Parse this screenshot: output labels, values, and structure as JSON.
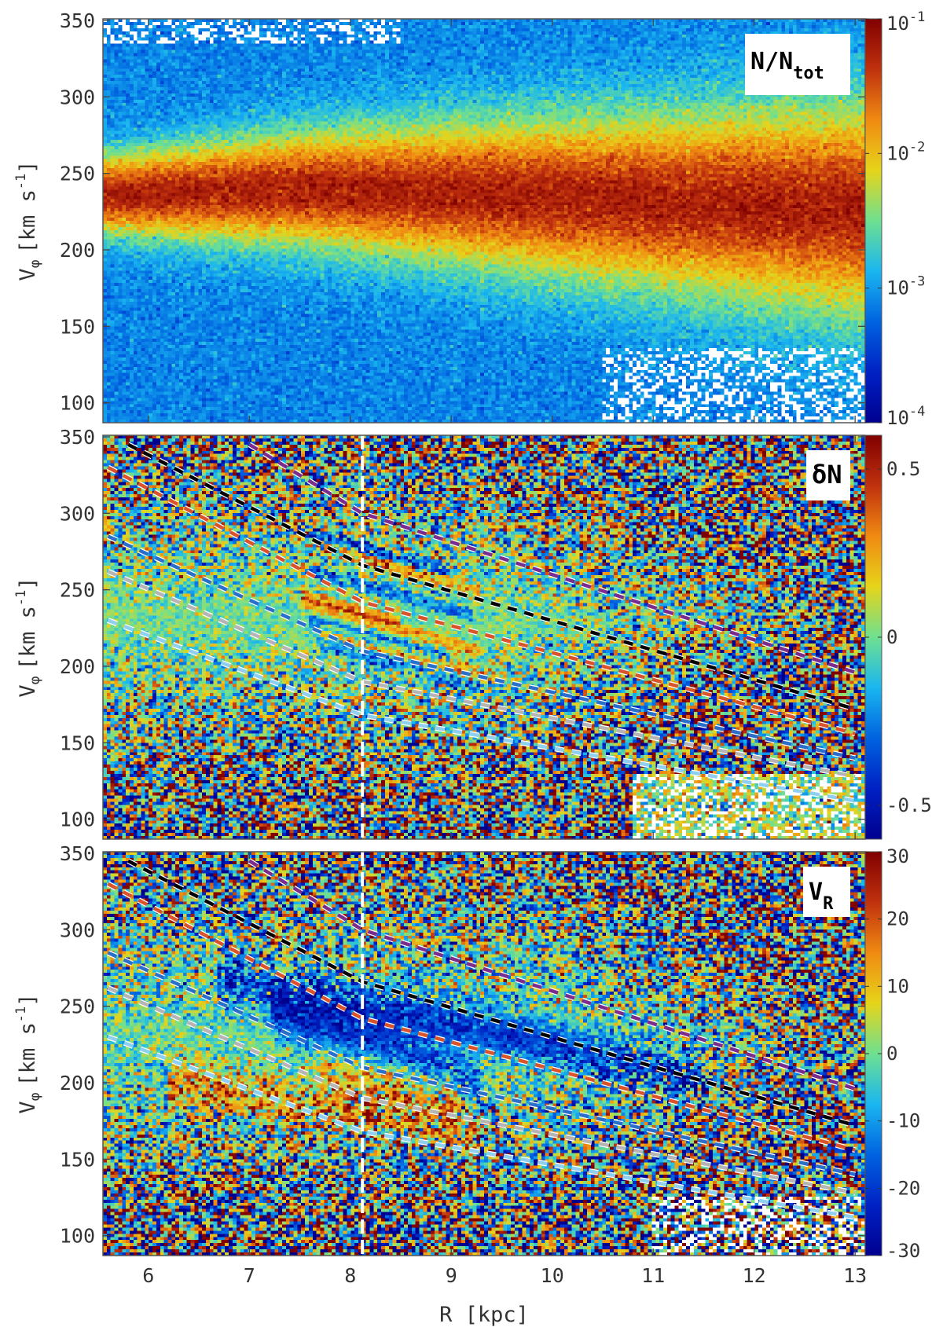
{
  "chart_data": {
    "type": "heatmap",
    "panels": [
      {
        "label": "N/N",
        "label_sub": "tot",
        "colorbar": {
          "scale": "log",
          "range": [
            0.0001,
            0.1
          ],
          "ticks": [
            {
              "base": "10",
              "exp": "-1"
            },
            {
              "base": "10",
              "exp": "-2"
            },
            {
              "base": "10",
              "exp": "-3"
            },
            {
              "base": "10",
              "exp": "-4"
            }
          ]
        },
        "dashed_lines": false
      },
      {
        "label": "δN",
        "colorbar": {
          "scale": "linear",
          "range": [
            -0.6,
            0.6
          ],
          "ticks": [
            "0.5",
            "0",
            "-0.5"
          ],
          "tick_values": [
            0.5,
            0,
            -0.5
          ]
        },
        "dashed_lines": true
      },
      {
        "label": "V",
        "label_sub": "R",
        "colorbar": {
          "scale": "linear",
          "range": [
            -30,
            30
          ],
          "ticks": [
            "30",
            "20",
            "10",
            "0",
            "-10",
            "-20",
            "-30"
          ],
          "tick_values": [
            30,
            20,
            10,
            0,
            -10,
            -20,
            -30
          ]
        },
        "dashed_lines": true
      }
    ],
    "x": {
      "label": "R [kpc]",
      "range": [
        5.55,
        13.1
      ],
      "ticks": [
        "6",
        "7",
        "8",
        "9",
        "10",
        "11",
        "12",
        "13"
      ],
      "tick_values": [
        6,
        7,
        8,
        9,
        10,
        11,
        12,
        13
      ]
    },
    "y": {
      "label": "V",
      "label_sub": "φ",
      "label_units": "[km s",
      "label_exp": "-1",
      "label_close": "]",
      "range": [
        87,
        351
      ],
      "ticks": [
        "350",
        "300",
        "250",
        "200",
        "150",
        "100"
      ],
      "tick_values": [
        350,
        300,
        250,
        200,
        150,
        100
      ]
    },
    "vertical_line": {
      "R": 8.12,
      "color": "#ffffff",
      "style": "dashed"
    },
    "resonance_lines": [
      {
        "color": "#7b2d8e",
        "points": [
          [
            7.0,
            345
          ],
          [
            8.12,
            300
          ],
          [
            13.0,
            196
          ]
        ]
      },
      {
        "color": "#000000",
        "points": [
          [
            5.8,
            345
          ],
          [
            8.12,
            266
          ],
          [
            13.0,
            172
          ]
        ]
      },
      {
        "color": "#d9542a",
        "points": [
          [
            5.6,
            330
          ],
          [
            8.12,
            242
          ],
          [
            13.0,
            156
          ]
        ]
      },
      {
        "color": "#2a6fc9",
        "points": [
          [
            5.6,
            285
          ],
          [
            8.12,
            210
          ],
          [
            13.0,
            140
          ]
        ]
      },
      {
        "color": "#b5b5b5",
        "points": [
          [
            5.6,
            262
          ],
          [
            8.12,
            190
          ],
          [
            13.0,
            128
          ]
        ]
      },
      {
        "color": "#8fd0f0",
        "points": [
          [
            5.6,
            230
          ],
          [
            8.12,
            168
          ],
          [
            13.0,
            112
          ]
        ]
      }
    ],
    "ridges": {
      "density": [
        {
          "points": [
            [
              5.6,
              236
            ],
            [
              7.5,
              240
            ],
            [
              9,
              237
            ],
            [
              11,
              232
            ],
            [
              13,
              226
            ]
          ],
          "width": 26
        }
      ],
      "delta_n_positive": [
        {
          "R": 8.5,
          "Vphi": 263,
          "len": 0.8
        },
        {
          "R": 8.4,
          "Vphi": 226,
          "len": 0.9
        },
        {
          "R": 8.6,
          "Vphi": 208,
          "len": 0.9
        },
        {
          "R": 8.0,
          "Vphi": 238,
          "len": 0.5
        }
      ],
      "delta_n_negative": [
        {
          "R": 8.3,
          "Vphi": 275,
          "len": 0.7
        },
        {
          "R": 8.4,
          "Vphi": 248,
          "len": 0.8
        },
        {
          "R": 8.3,
          "Vphi": 217,
          "len": 0.7
        },
        {
          "R": 8.5,
          "Vphi": 200,
          "len": 0.8
        }
      ],
      "vr_negative": [
        {
          "points": [
            [
              7.0,
              265
            ],
            [
              8.12,
              250
            ],
            [
              9.5,
              232
            ],
            [
              10.5,
              215
            ],
            [
              11.2,
              205
            ]
          ],
          "strength": 0.9
        },
        {
          "points": [
            [
              7.5,
              240
            ],
            [
              8.4,
              222
            ],
            [
              9.0,
              205
            ]
          ],
          "strength": 0.8
        }
      ],
      "vr_positive": [
        {
          "points": [
            [
              6.5,
              198
            ],
            [
              7.5,
              186
            ],
            [
              8.3,
              180
            ],
            [
              9.0,
              172
            ]
          ],
          "strength": 0.8
        },
        {
          "points": [
            [
              8.0,
              205
            ],
            [
              8.8,
              195
            ]
          ],
          "strength": 0.6
        }
      ]
    }
  }
}
